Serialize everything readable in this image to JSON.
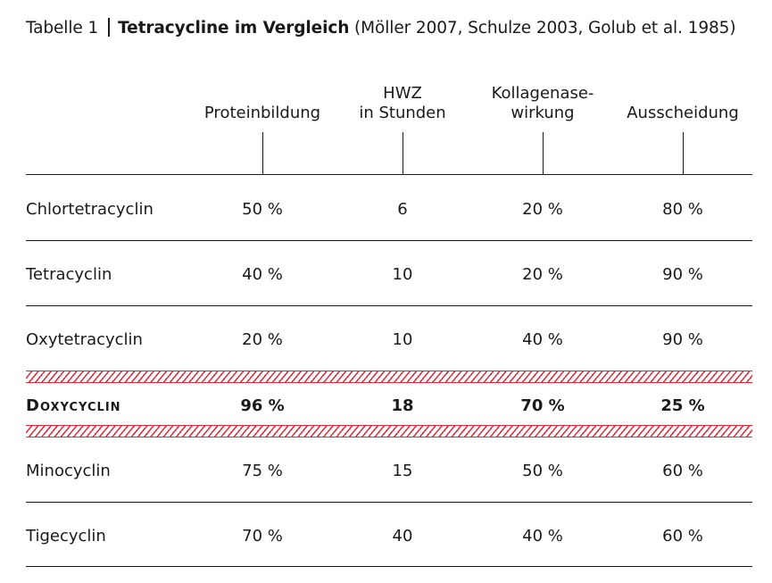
{
  "caption": {
    "label": "Tabelle 1",
    "title": "Tetracycline im Vergleich",
    "source": "(Möller 2007, Schulze 2003, Golub et al. 1985)"
  },
  "columns": [
    {
      "line1": "",
      "line2": "Proteinbildung"
    },
    {
      "line1": "HWZ",
      "line2": "in Stunden"
    },
    {
      "line1": "Kollagenase-",
      "line2": "wirkung"
    },
    {
      "line1": "",
      "line2": "Ausscheidung"
    }
  ],
  "rows": [
    {
      "name": "Chlortetracyclin",
      "values": [
        "50 %",
        "6",
        "20 %",
        "80 %"
      ],
      "highlight": false
    },
    {
      "name": "Tetracyclin",
      "values": [
        "40 %",
        "10",
        "20 %",
        "90 %"
      ],
      "highlight": false
    },
    {
      "name": "Oxytetracyclin",
      "values": [
        "20 %",
        "10",
        "40 %",
        "90 %"
      ],
      "highlight": false
    },
    {
      "name": "Doxycyclin",
      "values": [
        "96 %",
        "18",
        "70 %",
        "25 %"
      ],
      "highlight": true
    },
    {
      "name": "Minocyclin",
      "values": [
        "75 %",
        "15",
        "50 %",
        "60 %"
      ],
      "highlight": false
    },
    {
      "name": "Tigecyclin",
      "values": [
        "70 %",
        "40",
        "40 %",
        "60 %"
      ],
      "highlight": false
    }
  ],
  "colors": {
    "text": "#1a1a1a",
    "highlight_hatch": "#e3283a"
  }
}
